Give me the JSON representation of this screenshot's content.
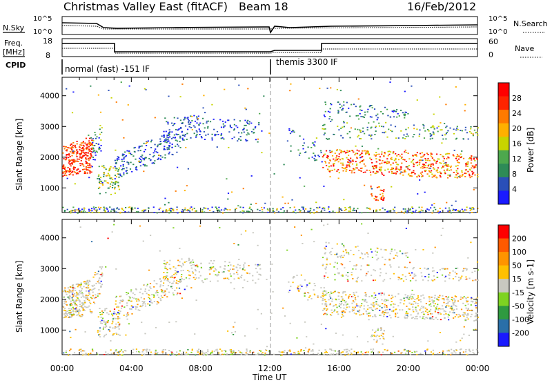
{
  "header": {
    "title": "Christmas Valley East (fitACF)",
    "beam": "Beam 18",
    "date": "16/Feb/2012"
  },
  "colors": {
    "power": [
      "#1a1aff",
      "#2a4fb8",
      "#2e8b57",
      "#4da84d",
      "#c8d400",
      "#ffb000",
      "#ff7a00",
      "#ff2400",
      "#ff0000"
    ],
    "velocity": [
      "#1a1aff",
      "#2a6fa8",
      "#2f9a40",
      "#7ed321",
      "#c8c8c0",
      "#ffc000",
      "#ff9400",
      "#ff5a00",
      "#ff0000"
    ]
  },
  "panels": {
    "nsky": {
      "left_label": "N.Sky",
      "right_label": "N.Search",
      "left_ticks": [
        "10^5",
        "10^0"
      ],
      "right_ticks": [
        "10^5",
        "10^0"
      ]
    },
    "freq": {
      "left_label": "Freq.",
      "left_unit": "[MHz]",
      "right_label": "Nave",
      "left_ticks": [
        "18",
        "8"
      ],
      "right_ticks": [
        "60",
        "0"
      ]
    },
    "cpid": {
      "label": "CPID",
      "segments": [
        "normal (fast) -151 IF",
        "themis 3300 IF"
      ]
    }
  },
  "chart_data": [
    {
      "type": "heatmap",
      "name": "Power",
      "ylabel": "Slant Range [km]",
      "ylim": [
        200,
        4600
      ],
      "yticks": [
        1000,
        2000,
        3000,
        4000
      ],
      "xlim": [
        0,
        24
      ],
      "colorbar_label": "Power [dB]",
      "colorbar_ticks": [
        "28",
        "24",
        "20",
        "16",
        "12",
        "8",
        "4"
      ]
    },
    {
      "type": "heatmap",
      "name": "Velocity",
      "ylabel": "Slant Range [km]",
      "ylim": [
        200,
        4600
      ],
      "yticks": [
        1000,
        2000,
        3000,
        4000
      ],
      "xlim": [
        0,
        24
      ],
      "colorbar_label": "Velocity [m s-1]",
      "colorbar_ticks": [
        "200",
        "100",
        "50",
        "15",
        "-15",
        "-50",
        "-100",
        "-200"
      ]
    }
  ],
  "x_axis": {
    "label": "Time UT",
    "ticks": [
      "00:00",
      "04:00",
      "08:00",
      "12:00",
      "16:00",
      "20:00",
      "00:00"
    ]
  }
}
